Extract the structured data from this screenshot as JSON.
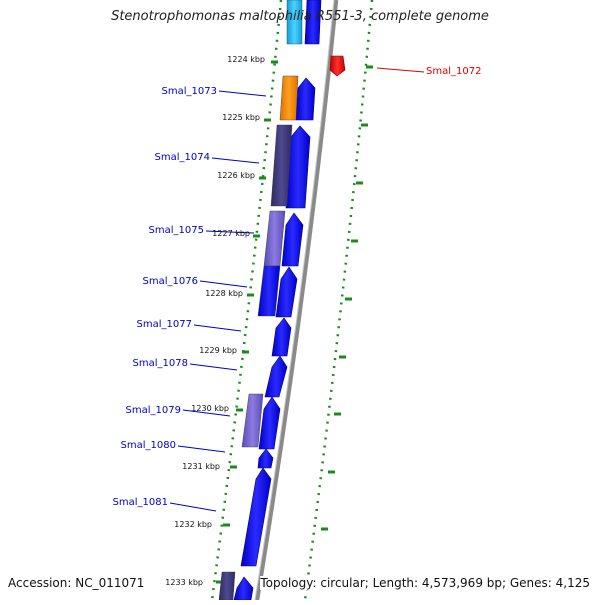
{
  "title": "Stenotrophomonas maltophilia R551-3, complete genome",
  "footer": {
    "accession": "Accession: NC_011071",
    "topology": "Topology: circular; Length: 4,573,969 bp; Genes: 4,125"
  },
  "colors": {
    "backbone": "#8a8a8a",
    "ruler": "#1e8a1e",
    "forward_gene": "#0000ee",
    "label_forward": "#0000cc",
    "label_reverse": "#dd0000",
    "reverse_gene": "#ee0000",
    "orange": "#ff8800",
    "dark_purple": "#3e3a78",
    "light_purple": "#7060c8",
    "cyan": "#22bbee"
  },
  "ticks": [
    {
      "label": "1224 kbp",
      "position_kbp": 1224
    },
    {
      "label": "1225 kbp",
      "position_kbp": 1225
    },
    {
      "label": "1226 kbp",
      "position_kbp": 1226
    },
    {
      "label": "1227 kbp",
      "position_kbp": 1227
    },
    {
      "label": "1228 kbp",
      "position_kbp": 1228
    },
    {
      "label": "1229 kbp",
      "position_kbp": 1229
    },
    {
      "label": "1230 kbp",
      "position_kbp": 1230
    },
    {
      "label": "1231 kbp",
      "position_kbp": 1231
    },
    {
      "label": "1232 kbp",
      "position_kbp": 1232
    },
    {
      "label": "1233 kbp",
      "position_kbp": 1233
    }
  ],
  "gene_labels": [
    {
      "name": "Smal_1072",
      "strand": "reverse"
    },
    {
      "name": "Smal_1073",
      "strand": "forward"
    },
    {
      "name": "Smal_1074",
      "strand": "forward"
    },
    {
      "name": "Smal_1075",
      "strand": "forward"
    },
    {
      "name": "Smal_1076",
      "strand": "forward"
    },
    {
      "name": "Smal_1077",
      "strand": "forward"
    },
    {
      "name": "Smal_1078",
      "strand": "forward"
    },
    {
      "name": "Smal_1079",
      "strand": "forward"
    },
    {
      "name": "Smal_1080",
      "strand": "forward"
    },
    {
      "name": "Smal_1081",
      "strand": "forward"
    }
  ]
}
